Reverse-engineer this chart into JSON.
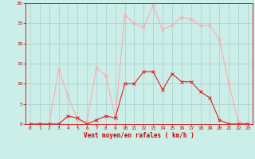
{
  "x": [
    0,
    1,
    2,
    3,
    4,
    5,
    6,
    7,
    8,
    9,
    10,
    11,
    12,
    13,
    14,
    15,
    16,
    17,
    18,
    19,
    20,
    21,
    22,
    23
  ],
  "y_mean": [
    0,
    0,
    0,
    0,
    2,
    1.5,
    0,
    1,
    2,
    1.5,
    10,
    10,
    13,
    13,
    8.5,
    12.5,
    10.5,
    10.5,
    8,
    6.5,
    1,
    0,
    0,
    0
  ],
  "y_gust": [
    0,
    0,
    0,
    13.5,
    7,
    1,
    0.5,
    14,
    12,
    1.5,
    27,
    25,
    24,
    29.5,
    23.5,
    24.5,
    26.5,
    26,
    24.5,
    24.5,
    21,
    10,
    0.5,
    0
  ],
  "color_mean": "#dd2222",
  "color_gust": "#ffaaaa",
  "bg_color": "#cceee8",
  "grid_color": "#aacccc",
  "xlabel": "Vent moyen/en rafales ( km/h )",
  "xlabel_color": "#cc0000",
  "tick_color": "#cc0000",
  "ylim": [
    0,
    30
  ],
  "xlim": [
    -0.5,
    23.5
  ],
  "yticks": [
    0,
    5,
    10,
    15,
    20,
    25,
    30
  ],
  "xticks": [
    0,
    1,
    2,
    3,
    4,
    5,
    6,
    7,
    8,
    9,
    10,
    11,
    12,
    13,
    14,
    15,
    16,
    17,
    18,
    19,
    20,
    21,
    22,
    23
  ]
}
